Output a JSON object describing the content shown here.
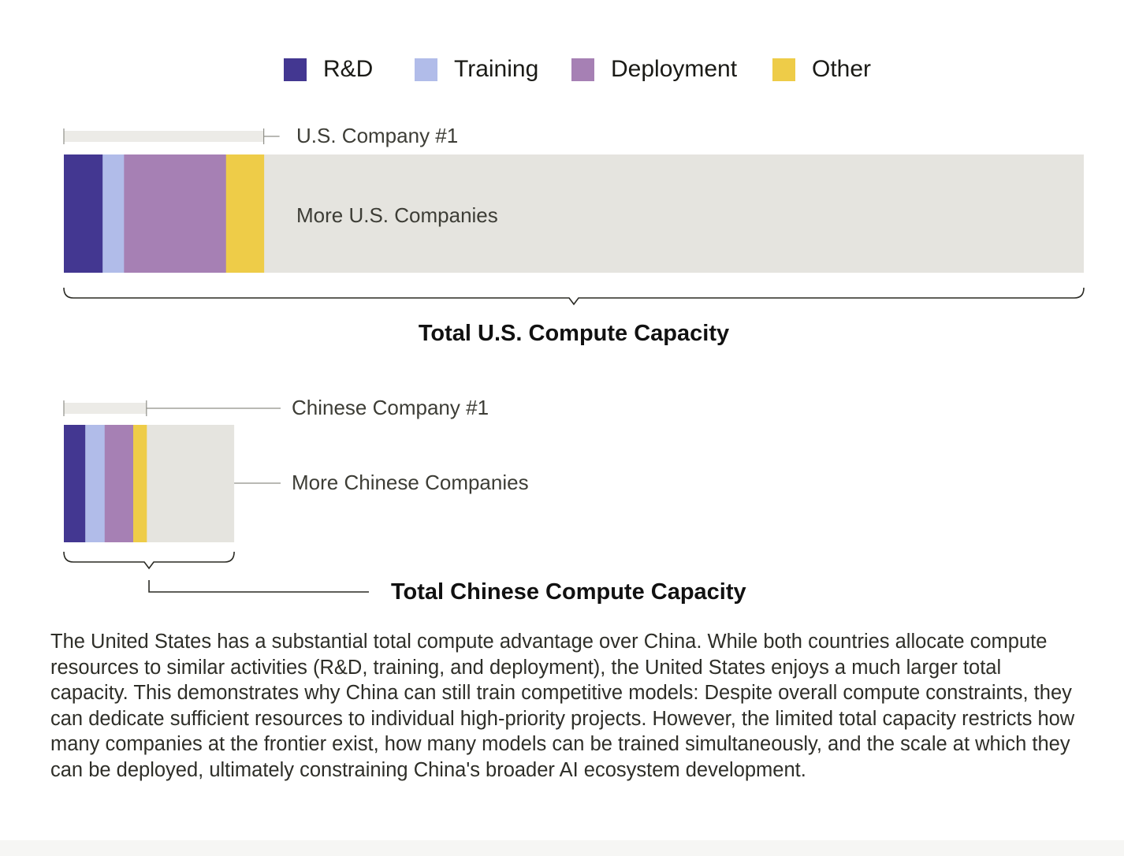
{
  "legend": [
    {
      "label": "R&D",
      "color": "#433791"
    },
    {
      "label": "Training",
      "color": "#b1bce9"
    },
    {
      "label": "Deployment",
      "color": "#a680b4"
    },
    {
      "label": "Other",
      "color": "#eecc48"
    }
  ],
  "chart_data": {
    "type": "bar",
    "orientation": "horizontal",
    "stacked": true,
    "background_color": "#e5e4df",
    "groups": [
      {
        "id": "us",
        "company_label": "U.S. Company #1",
        "more_label": "More U.S. Companies",
        "total_label": "Total U.S. Compute Capacity",
        "total": 100,
        "company1_total": 19.6,
        "segments": [
          {
            "name": "R&D",
            "value": 3.8
          },
          {
            "name": "Training",
            "value": 2.1
          },
          {
            "name": "Deployment",
            "value": 10.0
          },
          {
            "name": "Other",
            "value": 3.7
          }
        ]
      },
      {
        "id": "china",
        "company_label": "Chinese Company #1",
        "more_label": "More Chinese Companies",
        "total_label": "Total Chinese Compute Capacity",
        "total": 16.7,
        "company1_total": 8.1,
        "segments": [
          {
            "name": "R&D",
            "value": 2.1
          },
          {
            "name": "Training",
            "value": 1.9
          },
          {
            "name": "Deployment",
            "value": 2.8
          },
          {
            "name": "Other",
            "value": 1.3
          }
        ]
      }
    ]
  },
  "caption": "The United States has a substantial total compute advantage over China. While both countries allocate compute resources to similar activities (R&D, training, and deployment), the United States enjoys a much larger total capacity. This demonstrates why China can still train competitive models: Despite overall compute constraints, they can dedicate sufficient resources to individual high-priority projects. However, the limited total capacity restricts how many companies at the frontier exist, how many models can be trained simultaneously, and the scale at which they can be deployed, ultimately constraining China's broader AI ecosystem development."
}
